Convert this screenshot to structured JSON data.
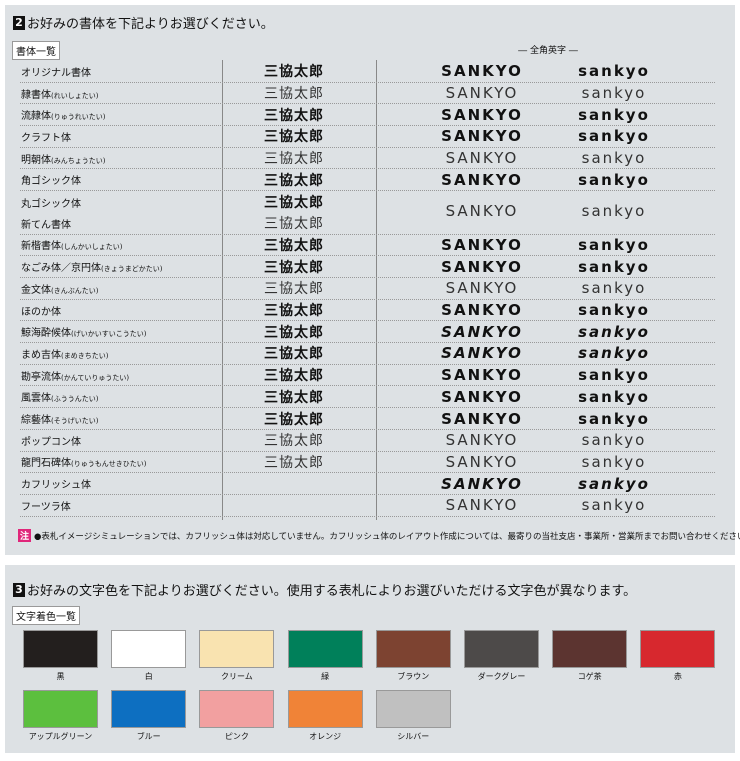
{
  "section2": {
    "number": "2",
    "title": "お好みの書体を下記よりお選びください。",
    "tag": "書体一覧",
    "english_header": "― 全角英字 ―",
    "rows": [
      {
        "name": "オリジナル書体",
        "reading": "",
        "kanji": "三協太郎",
        "upper": "SANKYO",
        "lower": "sankyo",
        "style": ""
      },
      {
        "name": "隷書体",
        "reading": "(れいしょたい)",
        "kanji": "三協太郎",
        "upper": "SANKYO",
        "lower": "sankyo",
        "style": "light"
      },
      {
        "name": "流隷体",
        "reading": "(りゅうれいたい)",
        "kanji": "三協太郎",
        "upper": "SANKYO",
        "lower": "sankyo",
        "style": ""
      },
      {
        "name": "クラフト体",
        "reading": "",
        "kanji": "三協太郎",
        "upper": "SANKYO",
        "lower": "sankyo",
        "style": ""
      },
      {
        "name": "明朝体",
        "reading": "(みんちょうたい)",
        "kanji": "三協太郎",
        "upper": "SANKYO",
        "lower": "sankyo",
        "style": "light"
      },
      {
        "name": "角ゴシック体",
        "reading": "",
        "kanji": "三協太郎",
        "upper": "SANKYO",
        "lower": "sankyo",
        "style": ""
      },
      {
        "name": "丸ゴシック体",
        "reading": "",
        "kanji": "三協太郎",
        "style": ""
      },
      {
        "name": "新てん書体",
        "reading": "",
        "kanji": "三協太郎",
        "upper": "SANKYO",
        "lower": "sankyo",
        "style": "light"
      },
      {
        "name": "新楷書体",
        "reading": "(しんかいしょたい)",
        "kanji": "三協太郎",
        "upper": "SANKYO",
        "lower": "sankyo",
        "style": ""
      },
      {
        "name": "なごみ体／京円体",
        "reading": "(きょうまどかたい)",
        "kanji": "三協太郎",
        "upper": "SANKYO",
        "lower": "sankyo",
        "style": ""
      },
      {
        "name": "金文体",
        "reading": "(きんぶんたい)",
        "kanji": "三協太郎",
        "upper": "SANKYO",
        "lower": "sankyo",
        "style": "light"
      },
      {
        "name": "ほのか体",
        "reading": "",
        "kanji": "三協太郎",
        "upper": "SANKYO",
        "lower": "sankyo",
        "style": ""
      },
      {
        "name": "鯨海酔候体",
        "reading": "(げいかいすいこうたい)",
        "kanji": "三協太郎",
        "upper": "SANKYO",
        "lower": "sankyo",
        "style": "it"
      },
      {
        "name": "まめ吉体",
        "reading": "(まめきちたい)",
        "kanji": "三協太郎",
        "upper": "SANKYO",
        "lower": "sankyo",
        "style": "it"
      },
      {
        "name": "勘亭流体",
        "reading": "(かんていりゅうたい)",
        "kanji": "三協太郎",
        "upper": "SANKYO",
        "lower": "sankyo",
        "style": ""
      },
      {
        "name": "風雲体",
        "reading": "(ふううんたい)",
        "kanji": "三協太郎",
        "upper": "SANKYO",
        "lower": "sankyo",
        "style": ""
      },
      {
        "name": "綜藝体",
        "reading": "(そうげいたい)",
        "kanji": "三協太郎",
        "upper": "SANKYO",
        "lower": "sankyo",
        "style": ""
      },
      {
        "name": "ポップコン体",
        "reading": "",
        "kanji": "三協太郎",
        "upper": "SANKYO",
        "lower": "sankyo",
        "style": "light"
      },
      {
        "name": "龍門石碑体",
        "reading": "(りゅうもんせきひたい)",
        "kanji": "三協太郎",
        "upper": "SANKYO",
        "lower": "sankyo",
        "style": "light"
      },
      {
        "name": "カフリッシュ体",
        "reading": "",
        "kanji": "",
        "upper": "SANKYO",
        "lower": "sankyo",
        "style": "it"
      },
      {
        "name": "フーツラ体",
        "reading": "",
        "kanji": "",
        "upper": "SANKYO",
        "lower": "sankyo",
        "style": "light"
      }
    ],
    "note_label": "注",
    "note": "●表札イメージシミュレーションでは、カフリッシュ体は対応していません。カフリッシュ体のレイアウト作成については、最寄りの当社支店・事業所・営業所までお問い合わせください。"
  },
  "section3": {
    "number": "3",
    "title": "お好みの文字色を下記よりお選びください。使用する表札によりお選びいただける文字色が異なります。",
    "tag": "文字着色一覧",
    "colors": [
      {
        "name": "黒",
        "hex": "#231f1e"
      },
      {
        "name": "白",
        "hex": "#ffffff"
      },
      {
        "name": "クリーム",
        "hex": "#f9e3b0"
      },
      {
        "name": "緑",
        "hex": "#00805a"
      },
      {
        "name": "ブラウン",
        "hex": "#7d4331"
      },
      {
        "name": "ダークグレー",
        "hex": "#4d4a49"
      },
      {
        "name": "コゲ茶",
        "hex": "#5c3430"
      },
      {
        "name": "赤",
        "hex": "#d7282e"
      },
      {
        "name": "アップルグリーン",
        "hex": "#5cbf3e"
      },
      {
        "name": "ブルー",
        "hex": "#0d6fc1"
      },
      {
        "name": "ピンク",
        "hex": "#f2a0a0"
      },
      {
        "name": "オレンジ",
        "hex": "#f08337"
      },
      {
        "name": "シルバー",
        "hex": "#c0c0c0"
      }
    ]
  }
}
